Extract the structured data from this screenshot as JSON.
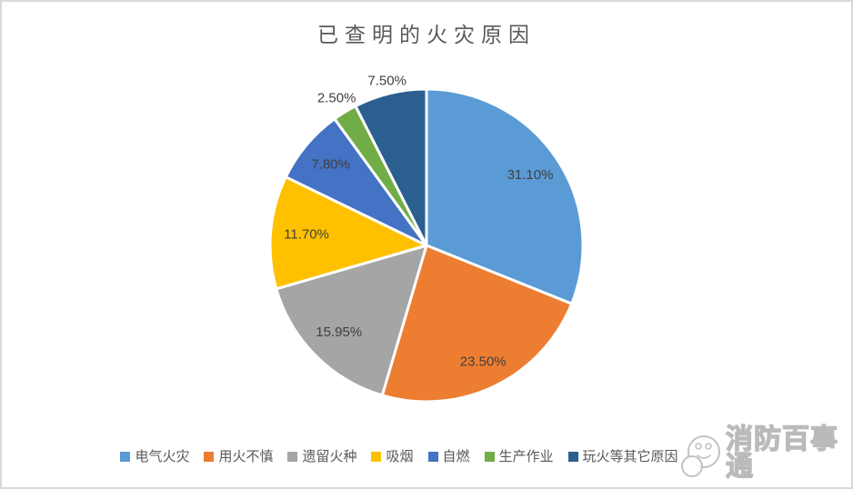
{
  "chart_data": {
    "type": "pie",
    "title": "已查明的火灾原因",
    "categories": [
      "电气火灾",
      "用火不慎",
      "遗留火种",
      "吸烟",
      "自燃",
      "生产作业",
      "玩火等其它原因"
    ],
    "values": [
      31.1,
      23.5,
      15.95,
      11.7,
      7.8,
      2.5,
      7.5
    ],
    "labels": [
      "31.10%",
      "23.50%",
      "15.95%",
      "11.70%",
      "7.80%",
      "2.50%",
      "7.50%"
    ],
    "colors": [
      "#5B9BD5",
      "#ED7D31",
      "#A5A5A5",
      "#FFC000",
      "#4472C4",
      "#70AD47",
      "#2A5F8F"
    ],
    "start_angle_deg": 0,
    "direction": "clockwise",
    "legend_position": "bottom",
    "label_radius_fractions": [
      0.8,
      0.83,
      0.79,
      0.77,
      0.8,
      1.1,
      1.08
    ],
    "slice_border_color": "#FFFFFF",
    "title_color": "#595959",
    "label_color": "#404040",
    "legend_text_color": "#595959",
    "frame_border_color": "#D9D9D9",
    "background_color": "#FFFFFF"
  },
  "watermark": {
    "text": "消防百事通",
    "icon": "mascot-smiley-icon"
  }
}
